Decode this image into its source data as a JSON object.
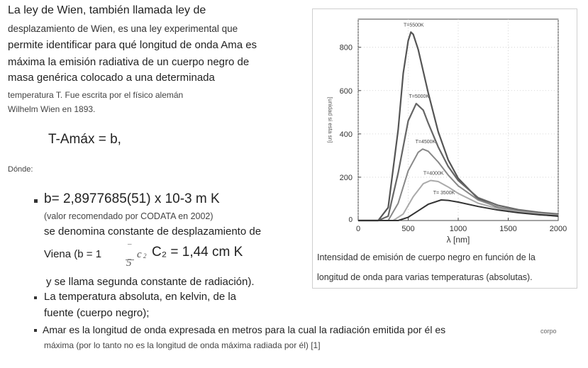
{
  "text": {
    "line1": "La ley de Wien, también llamada ley de",
    "line2": "desplazamiento de Wien, es una ley experimental que",
    "line3": "permite identificar para qué longitud de onda Ama es",
    "line4": "máxima la emisión radiativa de un cuerpo negro de",
    "line5": "masa genérica colocado a una determinada",
    "line6": "temperatura T. Fue escrita por el físico alemán",
    "line7": "Wilhelm Wien en 1893.",
    "formula": "T-Amáx = b,",
    "donde": "Dónde:",
    "b_value": "b= 2,8977685(51) x 10-3 m K",
    "b_note": "(valor recomendado por CODATA en 2002)",
    "b_desc": "se denomina constante de desplazamiento de",
    "viena_prefix": "Viena (b = 1",
    "frac_top": "–",
    "frac_bottom": "5",
    "frac_c": "c",
    "frac_sub": "2",
    "c2_value": "C₂ = 1,44 cm K",
    "radiacion": "y se llama segunda constante de radiación).",
    "temp_line1": "La temperatura absoluta, en kelvin, de la",
    "temp_line2": "fuente (cuerpo negro);",
    "amar_line1": "Amar es la longitud de onda expresada en metros para la cual la radiación emitida por él es",
    "corpo": "corpo",
    "amar_line2": "máxima (por lo tanto no es la longitud de onda máxima radiada por él) [1]"
  },
  "caption": {
    "line1": "Intensidad de emisión de cuerpo negro en función de la",
    "line2": "longitud de onda para varias temperaturas (absolutas)."
  },
  "chart_data": {
    "type": "line",
    "xlabel": "λ [nm]",
    "ylabel": "[unidad si esta sn]",
    "xlim": [
      0,
      2000
    ],
    "ylim": [
      0,
      930
    ],
    "xticks": [
      0,
      500,
      1000,
      1500,
      2000
    ],
    "yticks": [
      200,
      400,
      600,
      800
    ],
    "grid": true,
    "series": [
      {
        "name": "T=5500K",
        "peak_x": 527,
        "peak_y": 870,
        "color": "#555555",
        "width": 2.2,
        "values_x": [
          0,
          200,
          300,
          400,
          450,
          500,
          527,
          550,
          600,
          700,
          800,
          900,
          1000,
          1200,
          1400,
          1600,
          1800,
          2000
        ],
        "values_y": [
          0,
          0,
          60,
          420,
          680,
          830,
          870,
          860,
          790,
          590,
          410,
          280,
          195,
          100,
          60,
          40,
          28,
          20
        ]
      },
      {
        "name": "T=5000K",
        "peak_x": 580,
        "peak_y": 540,
        "color": "#666666",
        "width": 2.2,
        "values_x": [
          0,
          200,
          300,
          400,
          500,
          580,
          650,
          700,
          800,
          900,
          1000,
          1200,
          1400,
          1600,
          1800,
          2000
        ],
        "values_y": [
          0,
          0,
          20,
          220,
          460,
          540,
          510,
          450,
          340,
          250,
          185,
          105,
          70,
          50,
          38,
          30
        ]
      },
      {
        "name": "T=4500K",
        "peak_x": 645,
        "peak_y": 330,
        "color": "#888888",
        "width": 2.0,
        "values_x": [
          0,
          300,
          400,
          500,
          600,
          645,
          700,
          800,
          900,
          1000,
          1200,
          1400,
          1600,
          1800,
          2000
        ],
        "values_y": [
          0,
          0,
          80,
          230,
          315,
          330,
          320,
          270,
          210,
          160,
          95,
          62,
          45,
          34,
          26
        ]
      },
      {
        "name": "T=4000K",
        "peak_x": 725,
        "peak_y": 185,
        "color": "#aaaaaa",
        "width": 2.0,
        "values_x": [
          0,
          350,
          450,
          550,
          650,
          725,
          800,
          900,
          1000,
          1200,
          1400,
          1600,
          1800,
          2000
        ],
        "values_y": [
          0,
          0,
          30,
          110,
          170,
          185,
          180,
          155,
          125,
          80,
          55,
          40,
          30,
          24
        ]
      },
      {
        "name": "T= 3500K",
        "peak_x": 830,
        "peak_y": 95,
        "color": "#333333",
        "width": 2.0,
        "values_x": [
          0,
          400,
          500,
          600,
          700,
          830,
          900,
          1000,
          1200,
          1400,
          1600,
          1800,
          2000
        ],
        "values_y": [
          0,
          0,
          15,
          45,
          75,
          95,
          93,
          85,
          65,
          48,
          36,
          27,
          21
        ]
      }
    ]
  }
}
